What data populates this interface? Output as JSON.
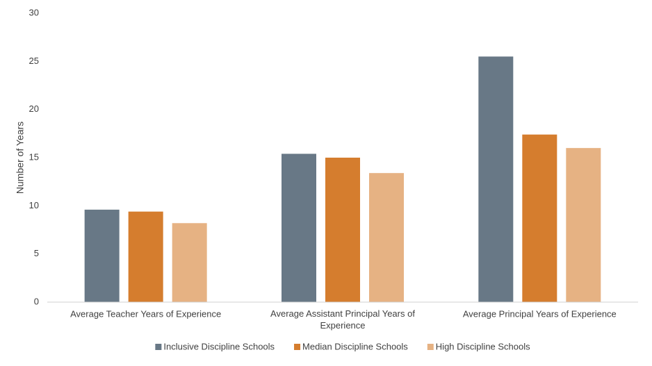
{
  "chart_data": {
    "type": "bar",
    "y_label": "Number of Years",
    "categories": [
      "Average Teacher Years of Experience",
      "Average Assistant Principal Years of Experience",
      "Average Principal Years of Experience"
    ],
    "series": [
      {
        "name": "Inclusive Discipline Schools",
        "color": "#687886",
        "values": [
          9.6,
          15.4,
          25.5
        ]
      },
      {
        "name": "Median Discipline Schools",
        "color": "#d57d2e",
        "values": [
          9.4,
          15.0,
          17.4
        ]
      },
      {
        "name": "High Discipline Schools",
        "color": "#e6b283",
        "values": [
          8.2,
          13.4,
          16.0
        ]
      }
    ],
    "ylim": [
      0,
      30
    ],
    "yticks": [
      0,
      5,
      10,
      15,
      20,
      25,
      30
    ],
    "grid": false,
    "legend": "bottom"
  }
}
